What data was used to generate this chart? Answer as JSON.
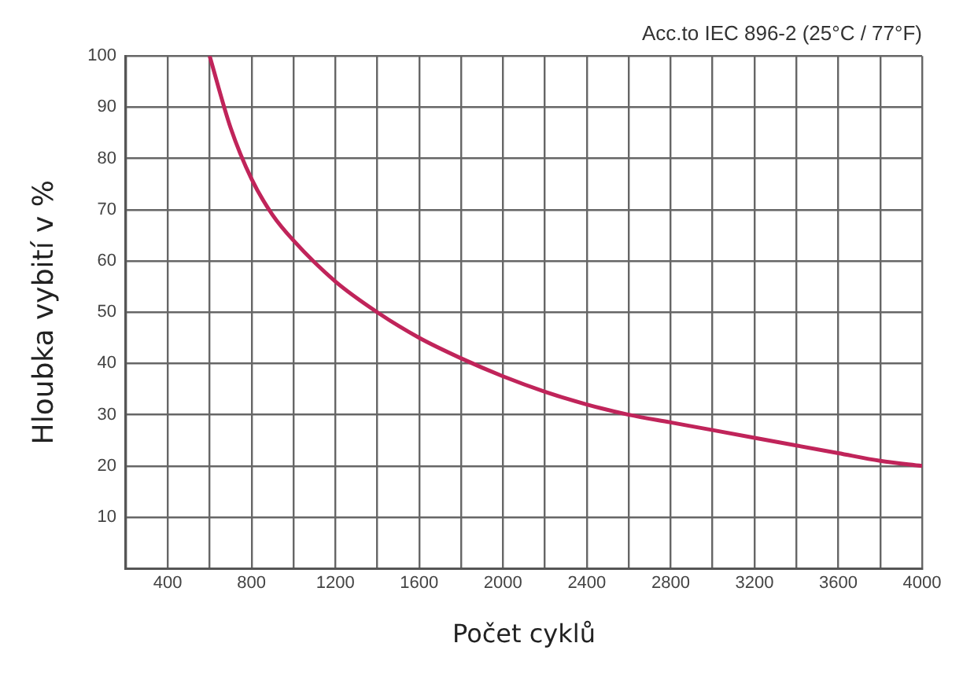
{
  "chart_data": {
    "type": "line",
    "title": "Acc.to IEC 896-2 (25°C / 77°F)",
    "xlabel": "Počet cyklů",
    "ylabel": "Hloubka vybití v %",
    "x": [
      600,
      700,
      800,
      900,
      1000,
      1200,
      1400,
      1600,
      1800,
      2000,
      2200,
      2400,
      2600,
      2800,
      3000,
      3200,
      3400,
      3600,
      3800,
      4000
    ],
    "series": [
      {
        "color": "#c0245a",
        "values": [
          100,
          86,
          76,
          69,
          64,
          56,
          50,
          45,
          41,
          37.5,
          34.5,
          32,
          30,
          28.5,
          27,
          25.5,
          24,
          22.5,
          21,
          20
        ]
      }
    ],
    "xlim": [
      200,
      4000
    ],
    "xticks": [
      {
        "value": 200,
        "label": null
      },
      400,
      {
        "value": 600,
        "label": null
      },
      800,
      {
        "value": 1000,
        "label": null
      },
      1200,
      {
        "value": 1400,
        "label": null
      },
      1600,
      {
        "value": 1800,
        "label": null
      },
      2000,
      {
        "value": 2200,
        "label": null
      },
      2400,
      {
        "value": 2600,
        "label": null
      },
      2800,
      {
        "value": 3000,
        "label": null
      },
      3200,
      {
        "value": 3400,
        "label": null
      },
      3600,
      {
        "value": 3800,
        "label": null
      },
      4000
    ],
    "ylim": [
      0,
      100
    ],
    "yticks": [
      {
        "value": 0,
        "label": null
      },
      10,
      20,
      30,
      40,
      50,
      60,
      70,
      80,
      90,
      100
    ],
    "grid": true,
    "marker": "none",
    "line_style": "solid",
    "legend": false
  }
}
